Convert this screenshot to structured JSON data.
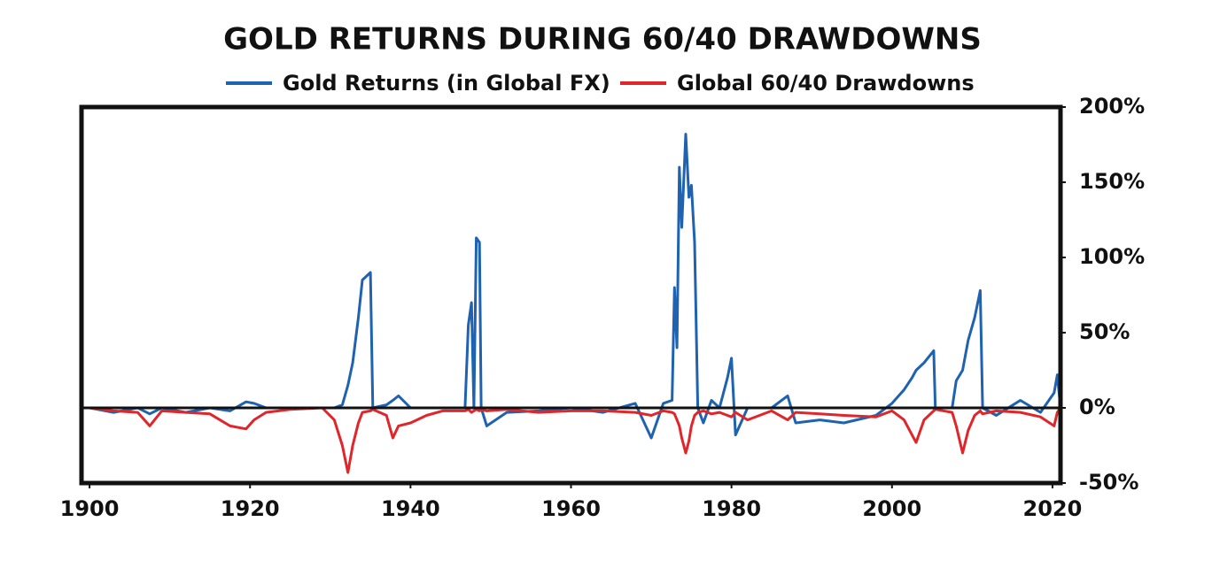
{
  "chart_data": {
    "type": "line",
    "title": "GOLD RETURNS DURING 60/40 DRAWDOWNS",
    "x": [
      1900,
      1903,
      1906,
      1907.5,
      1909,
      1912,
      1915,
      1917.5,
      1919.5,
      1920.5,
      1922,
      1925,
      1929,
      1930.5,
      1931.5,
      1932.2,
      1932.8,
      1933.5,
      1934,
      1935,
      1935.3,
      1937,
      1937.8,
      1938.5,
      1940,
      1942,
      1944,
      1946.8,
      1947.2,
      1947.6,
      1947.9,
      1948.2,
      1948.6,
      1948.8,
      1949.5,
      1952,
      1956,
      1960,
      1964,
      1968,
      1970,
      1971.5,
      1972.6,
      1972.9,
      1973.2,
      1973.5,
      1973.8,
      1974.3,
      1974.7,
      1975,
      1975.4,
      1975.8,
      1976.5,
      1977.5,
      1978.5,
      1979.5,
      1980,
      1980.5,
      1982,
      1985,
      1987,
      1988,
      1991,
      1994,
      1998,
      2000,
      2001.5,
      2002.5,
      2003,
      2004,
      2005.2,
      2005.4,
      2007.5,
      2008,
      2008.8,
      2009.5,
      2010.3,
      2011,
      2011.3,
      2013,
      2016,
      2018.5,
      2020.2,
      2020.6,
      2021
    ],
    "series": [
      {
        "name": "Gold Returns (in Global FX)",
        "color": "#1f63b0",
        "values": [
          0,
          -3,
          0,
          -4,
          0,
          -3,
          0,
          -2,
          4,
          3,
          0,
          0,
          0,
          0,
          2,
          15,
          30,
          60,
          85,
          90,
          0,
          2,
          5,
          8,
          0,
          0,
          0,
          0,
          55,
          70,
          0,
          113,
          110,
          0,
          -12,
          -3,
          -2,
          0,
          -3,
          3,
          -20,
          3,
          5,
          80,
          40,
          160,
          120,
          182,
          140,
          148,
          110,
          0,
          -10,
          5,
          0,
          20,
          33,
          -18,
          0,
          0,
          8,
          -10,
          -8,
          -10,
          -5,
          3,
          12,
          20,
          25,
          30,
          38,
          0,
          0,
          18,
          25,
          45,
          60,
          78,
          0,
          -5,
          5,
          -3,
          10,
          22,
          0
        ]
      },
      {
        "name": "Global 60/40 Drawdowns",
        "color": "#e0262b",
        "values": [
          0,
          -2,
          -3,
          -12,
          -2,
          -3,
          -4,
          -12,
          -14,
          -8,
          -3,
          -1,
          0,
          -8,
          -25,
          -43,
          -25,
          -10,
          -3,
          -2,
          -1,
          -5,
          -20,
          -12,
          -10,
          -5,
          -2,
          -2,
          -1,
          -3,
          -2,
          -1,
          -2,
          -1,
          -2,
          -1,
          -3,
          -2,
          -2,
          -3,
          -5,
          -2,
          -3,
          -4,
          -8,
          -12,
          -20,
          -30,
          -22,
          -12,
          -5,
          -3,
          -2,
          -4,
          -3,
          -5,
          -6,
          -3,
          -8,
          -2,
          -8,
          -3,
          -4,
          -5,
          -6,
          -2,
          -8,
          -18,
          -23,
          -8,
          -2,
          -1,
          -3,
          -12,
          -30,
          -15,
          -5,
          -2,
          -4,
          -2,
          -3,
          -6,
          -12,
          -3,
          0
        ]
      }
    ],
    "xlim": [
      1899,
      2021
    ],
    "xticks": [
      1900,
      1920,
      1940,
      1960,
      1980,
      2000,
      2020
    ],
    "ylim": [
      -50,
      200
    ],
    "yticks": [
      {
        "value": -50,
        "label": "-50%"
      },
      {
        "value": 0,
        "label": "0%"
      },
      {
        "value": 50,
        "label": "50%"
      },
      {
        "value": 100,
        "label": "100%"
      },
      {
        "value": 150,
        "label": "150%"
      },
      {
        "value": 200,
        "label": "200%"
      }
    ]
  }
}
